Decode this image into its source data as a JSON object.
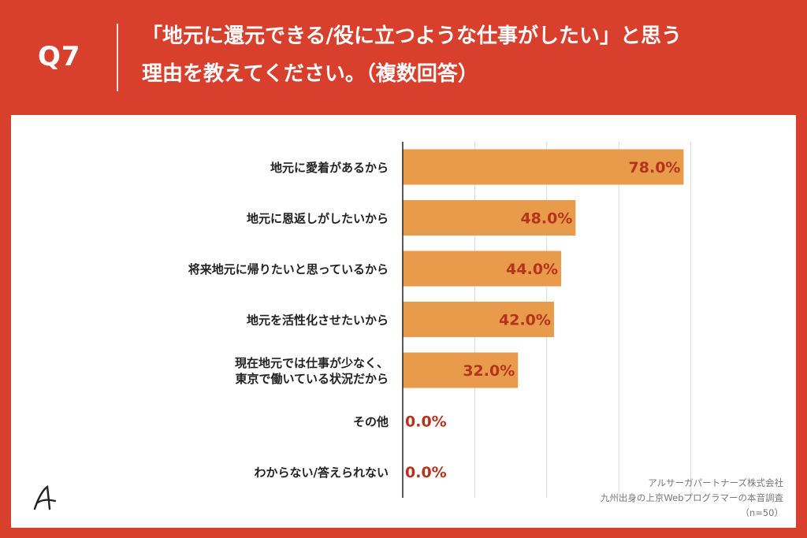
{
  "header": {
    "question_number": "Q7",
    "title_line1": "「地元に還元できる/役に立つような仕事がしたい」と思う",
    "title_line2": "理由を教えてください。（複数回答）"
  },
  "chart_data": {
    "type": "bar",
    "orientation": "horizontal",
    "categories": [
      [
        "地元に愛着があるから"
      ],
      [
        "地元に恩返しがしたいから"
      ],
      [
        "将来地元に帰りたいと思っているから"
      ],
      [
        "地元を活性化させたいから"
      ],
      [
        "現在地元では仕事が少なく、",
        "東京で働いている状況だから"
      ],
      [
        "その他"
      ],
      [
        "わからない/答えられない"
      ]
    ],
    "values": [
      78.0,
      48.0,
      44.0,
      42.0,
      32.0,
      0.0,
      0.0
    ],
    "value_labels": [
      "78.0%",
      "48.0%",
      "44.0%",
      "42.0%",
      "32.0%",
      "0.0%",
      "0.0%"
    ],
    "xlim": [
      0,
      100
    ],
    "grid": true,
    "bar_color": "#e89b4a",
    "label_color": "#b5331d"
  },
  "footer": {
    "company": "アルサーガパートナーズ株式会社",
    "survey": "九州出身の上京Webプログラマーの本音調査",
    "sample": "（n=50）"
  },
  "colors": {
    "background": "#d83f2c",
    "panel": "#ffffff",
    "grid": "#d9d9d9"
  }
}
